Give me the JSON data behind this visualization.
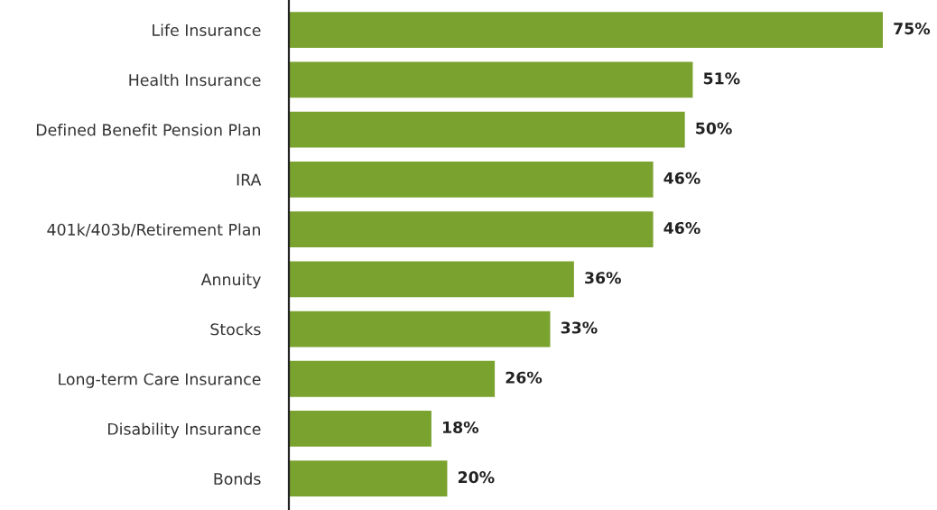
{
  "chart_data": {
    "type": "bar",
    "orientation": "horizontal",
    "categories": [
      "Life Insurance",
      "Health Insurance",
      "Defined Benefit Pension Plan",
      "IRA",
      "401k/403b/Retirement Plan",
      "Annuity",
      "Stocks",
      "Long-term Care Insurance",
      "Disability Insurance",
      "Bonds"
    ],
    "values": [
      75,
      51,
      50,
      46,
      46,
      36,
      33,
      26,
      18,
      20
    ],
    "value_labels": [
      "75%",
      "51%",
      "50%",
      "46%",
      "46%",
      "36%",
      "33%",
      "26%",
      "18%",
      "20%"
    ],
    "color": "#7aa22f",
    "grid": false,
    "legend": false,
    "tick_labels": "y"
  }
}
